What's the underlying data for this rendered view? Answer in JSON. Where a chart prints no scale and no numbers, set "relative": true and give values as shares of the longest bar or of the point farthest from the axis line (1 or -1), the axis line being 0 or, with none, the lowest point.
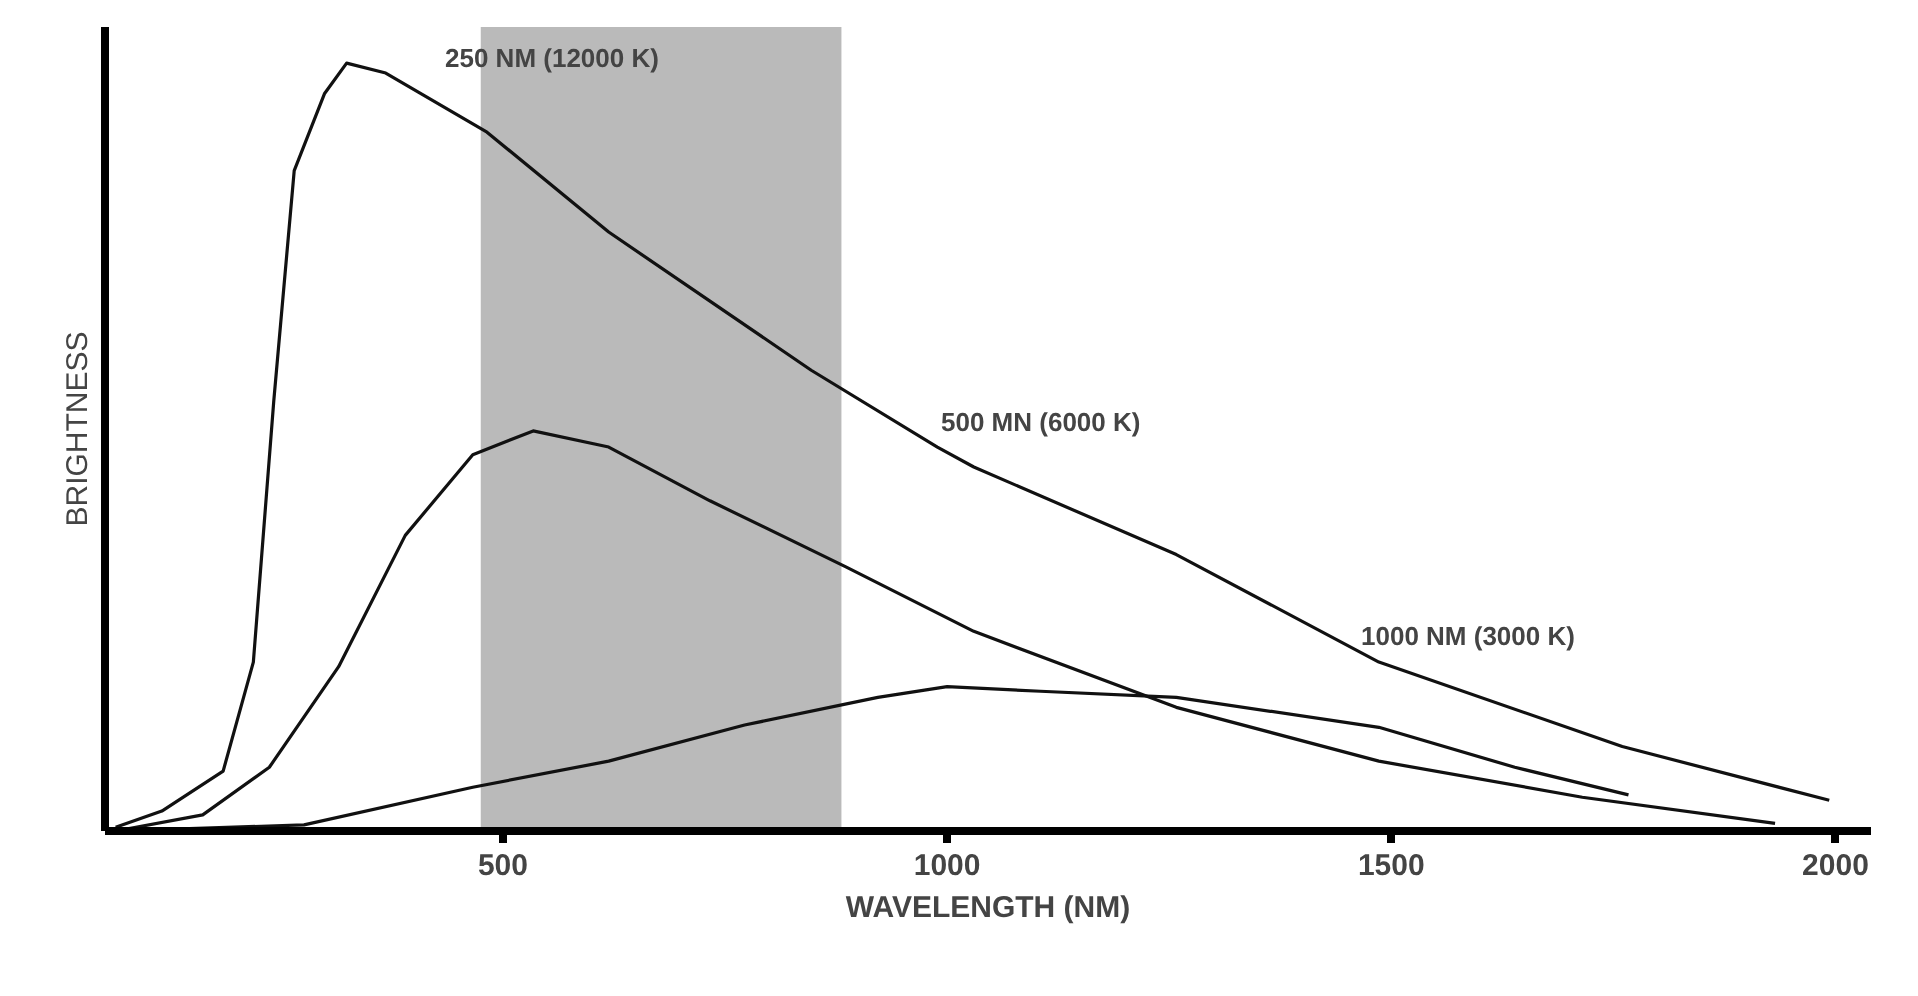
{
  "chart_data": {
    "type": "line",
    "xlabel": "WAVELENGTH (NM)",
    "ylabel": "BRIGHTNESS",
    "relative": true,
    "xlim": [
      52,
      2040
    ],
    "xticks": [
      500,
      1000,
      1500,
      2000
    ],
    "grid": false,
    "marker": "none",
    "line_style": "solid",
    "annotations": [
      "250 NM (12000 K)",
      "500 MN (6000 K)",
      "1000 NM (3000 K)"
    ],
    "bands": [
      {
        "axis": "x",
        "from": 475,
        "to": 881,
        "color": "#8c8c8c"
      }
    ],
    "series": [
      {
        "color": "#111111",
        "x": [
          64,
          116,
          185,
          219,
          242,
          265,
          299,
          324,
          368,
          482,
          619,
          733,
          847,
          989,
          1030,
          1258,
          1486,
          1760,
          1993
        ],
        "values": [
          0.005,
          0.026,
          0.078,
          0.22,
          0.56,
          0.86,
          0.96,
          1.0,
          0.987,
          0.91,
          0.78,
          0.69,
          0.6,
          0.5,
          0.474,
          0.36,
          0.22,
          0.11,
          0.04
        ]
      },
      {
        "color": "#111111",
        "x": [
          64,
          162,
          237,
          315,
          390,
          466,
          534,
          619,
          733,
          886,
          1030,
          1258,
          1486,
          1715,
          1932
        ],
        "values": [
          0,
          0.021,
          0.083,
          0.214,
          0.385,
          0.49,
          0.521,
          0.5,
          0.43,
          0.344,
          0.26,
          0.161,
          0.091,
          0.044,
          0.01
        ]
      },
      {
        "color": "#111111",
        "x": [
          64,
          276,
          466,
          619,
          772,
          922,
          1000,
          1105,
          1258,
          1486,
          1639,
          1767
        ],
        "values": [
          0,
          0.008,
          0.057,
          0.091,
          0.138,
          0.174,
          0.188,
          0.182,
          0.174,
          0.135,
          0.083,
          0.047
        ]
      }
    ]
  }
}
